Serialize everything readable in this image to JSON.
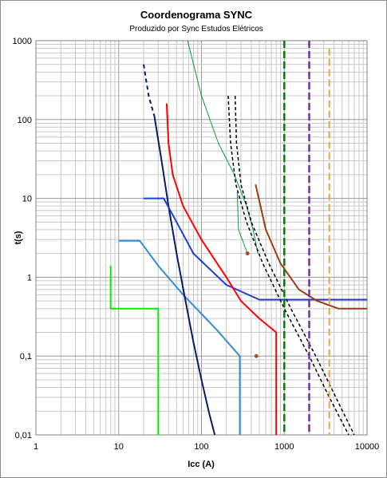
{
  "chart_data": {
    "type": "line",
    "title": "Coordenograma SYNC",
    "subtitle": "Produzido por Sync Estudos Elétricos",
    "xlabel": "Icc (A)",
    "ylabel": "t(s)",
    "x_scale": "log",
    "y_scale": "log",
    "xlim": [
      1,
      10000
    ],
    "ylim": [
      0.01,
      1000
    ],
    "x_ticks": [
      {
        "value": 1,
        "label": "1"
      },
      {
        "value": 10,
        "label": "10"
      },
      {
        "value": 100,
        "label": "100"
      },
      {
        "value": 1000,
        "label": "1000"
      },
      {
        "value": 10000,
        "label": "10000"
      }
    ],
    "y_ticks": [
      {
        "value": 1000,
        "label": "1000"
      },
      {
        "value": 100,
        "label": "100"
      },
      {
        "value": 10,
        "label": "10"
      },
      {
        "value": 1,
        "label": "1"
      },
      {
        "value": 0.1,
        "label": "0,1"
      },
      {
        "value": 0.01,
        "label": "0,01"
      }
    ],
    "grid": true,
    "series": [
      {
        "color": "#00ee00",
        "width": 2,
        "dash": "",
        "points": [
          [
            8,
            1.4
          ],
          [
            8,
            0.4
          ],
          [
            30,
            0.4
          ],
          [
            30,
            0.01
          ]
        ]
      },
      {
        "color": "#2e8ed6",
        "width": 2,
        "dash": "",
        "points": [
          [
            10,
            2.9
          ],
          [
            18,
            2.9
          ],
          [
            30,
            1.4
          ],
          [
            60,
            0.6
          ],
          [
            150,
            0.22
          ],
          [
            290,
            0.1
          ],
          [
            290,
            0.01
          ]
        ]
      },
      {
        "color": "#0a1a6a",
        "width": 2,
        "dash": "",
        "points": [
          [
            27,
            110
          ],
          [
            33,
            30
          ],
          [
            40,
            8
          ],
          [
            50,
            2
          ],
          [
            62,
            0.6
          ],
          [
            80,
            0.15
          ],
          [
            100,
            0.05
          ],
          [
            125,
            0.018
          ],
          [
            145,
            0.01
          ]
        ]
      },
      {
        "color": "#0a1a6a",
        "width": 2,
        "dash": "5,4",
        "points": [
          [
            20,
            500
          ],
          [
            23,
            200
          ],
          [
            27,
            110
          ]
        ]
      },
      {
        "color": "#1a3ed6",
        "width": 2,
        "dash": "",
        "points": [
          [
            20,
            10
          ],
          [
            35,
            10
          ],
          [
            50,
            5
          ],
          [
            80,
            2
          ],
          [
            200,
            0.8
          ],
          [
            500,
            0.52
          ],
          [
            800,
            0.52
          ],
          [
            10000,
            0.52
          ]
        ]
      },
      {
        "color": "#ff0000",
        "width": 2,
        "dash": "",
        "points": [
          [
            38,
            160
          ],
          [
            40,
            50
          ],
          [
            45,
            20
          ],
          [
            60,
            8
          ],
          [
            100,
            3
          ],
          [
            200,
            1
          ],
          [
            300,
            0.5
          ],
          [
            500,
            0.3
          ],
          [
            800,
            0.2
          ],
          [
            800,
            0.01
          ]
        ]
      },
      {
        "color": "#00a040",
        "width": 1,
        "dash": "",
        "points": [
          [
            68,
            1000
          ],
          [
            100,
            200
          ],
          [
            160,
            50
          ],
          [
            250,
            20
          ],
          [
            350,
            8
          ],
          [
            420,
            4
          ],
          [
            480,
            2
          ]
        ]
      },
      {
        "color": "#00a040",
        "width": 1,
        "dash": "",
        "points": [
          [
            270,
            12
          ],
          [
            280,
            4
          ],
          [
            360,
            2
          ]
        ]
      },
      {
        "color": "#000000",
        "width": 1.5,
        "dash": "4,3",
        "points": [
          [
            210,
            200
          ],
          [
            225,
            50
          ],
          [
            260,
            15
          ],
          [
            350,
            5
          ],
          [
            550,
            1.5
          ],
          [
            1000,
            0.4
          ],
          [
            2000,
            0.1
          ],
          [
            3500,
            0.03
          ],
          [
            6000,
            0.01
          ]
        ]
      },
      {
        "color": "#000000",
        "width": 1.5,
        "dash": "4,3",
        "points": [
          [
            255,
            200
          ],
          [
            265,
            50
          ],
          [
            300,
            15
          ],
          [
            400,
            5
          ],
          [
            650,
            1.5
          ],
          [
            1200,
            0.4
          ],
          [
            2400,
            0.1
          ],
          [
            4200,
            0.03
          ],
          [
            7000,
            0.01
          ]
        ]
      },
      {
        "color": "#a03c10",
        "width": 2,
        "dash": "",
        "points": [
          [
            450,
            15
          ],
          [
            600,
            4
          ],
          [
            900,
            1.5
          ],
          [
            1500,
            0.7
          ],
          [
            2500,
            0.5
          ],
          [
            4500,
            0.4
          ],
          [
            10000,
            0.4
          ]
        ]
      },
      {
        "color": "#008000",
        "width": 2.5,
        "dash": "9,4",
        "points": [
          [
            1000,
            1000
          ],
          [
            1000,
            0.01
          ]
        ]
      },
      {
        "color": "#7030a0",
        "width": 2.5,
        "dash": "9,4",
        "points": [
          [
            2000,
            1000
          ],
          [
            2000,
            0.01
          ]
        ]
      },
      {
        "color": "#f5a040",
        "width": 2,
        "dash": "9,4",
        "points": [
          [
            3500,
            800
          ],
          [
            3500,
            0.01
          ]
        ]
      }
    ],
    "markers": [
      {
        "x": 360,
        "y": 2.0,
        "color": "#a0522d"
      },
      {
        "x": 460,
        "y": 0.1,
        "color": "#a0522d"
      }
    ]
  }
}
